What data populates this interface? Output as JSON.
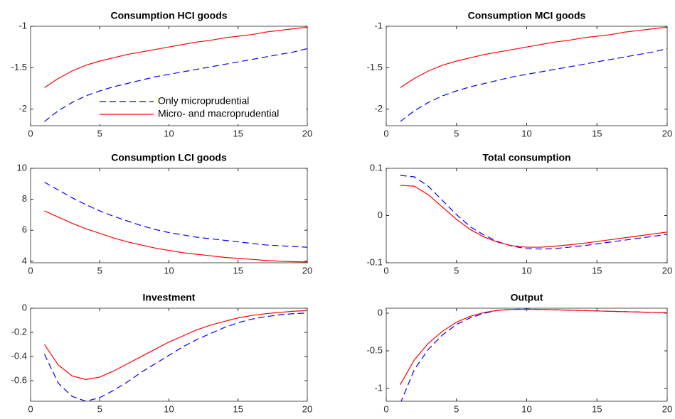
{
  "chart_data": [
    {
      "type": "line",
      "title": "Consumption HCI goods",
      "x": [
        1,
        2,
        3,
        4,
        5,
        6,
        7,
        8,
        9,
        10,
        11,
        12,
        13,
        14,
        15,
        16,
        17,
        18,
        19,
        20
      ],
      "xlim": [
        0,
        20
      ],
      "xticks": [
        0,
        5,
        10,
        15,
        20
      ],
      "ylim": [
        -2.2,
        -1
      ],
      "yticks": [
        -2,
        -1.5,
        -1
      ],
      "legend": "lower right",
      "series": [
        {
          "name": "Only microprudential",
          "color": "#0000ff",
          "line_style": "dashed",
          "values": [
            -2.15,
            -2.02,
            -1.92,
            -1.84,
            -1.78,
            -1.73,
            -1.69,
            -1.65,
            -1.61,
            -1.58,
            -1.55,
            -1.52,
            -1.49,
            -1.46,
            -1.43,
            -1.4,
            -1.37,
            -1.34,
            -1.31,
            -1.27
          ]
        },
        {
          "name": "Micro- and macroprudential",
          "color": "#ff0000",
          "line_style": "solid",
          "values": [
            -1.74,
            -1.63,
            -1.54,
            -1.47,
            -1.42,
            -1.38,
            -1.34,
            -1.31,
            -1.28,
            -1.25,
            -1.22,
            -1.19,
            -1.17,
            -1.14,
            -1.12,
            -1.1,
            -1.07,
            -1.05,
            -1.03,
            -1.01
          ]
        }
      ]
    },
    {
      "type": "line",
      "title": "Consumption MCI goods",
      "x": [
        1,
        2,
        3,
        4,
        5,
        6,
        7,
        8,
        9,
        10,
        11,
        12,
        13,
        14,
        15,
        16,
        17,
        18,
        19,
        20
      ],
      "xlim": [
        0,
        20
      ],
      "xticks": [
        0,
        5,
        10,
        15,
        20
      ],
      "ylim": [
        -2.2,
        -1
      ],
      "yticks": [
        -2,
        -1.5,
        -1
      ],
      "series": [
        {
          "color": "#0000ff",
          "line_style": "dashed",
          "values": [
            -2.15,
            -2.02,
            -1.92,
            -1.84,
            -1.78,
            -1.73,
            -1.69,
            -1.65,
            -1.61,
            -1.58,
            -1.55,
            -1.52,
            -1.49,
            -1.46,
            -1.43,
            -1.4,
            -1.37,
            -1.34,
            -1.31,
            -1.27
          ]
        },
        {
          "color": "#ff0000",
          "line_style": "solid",
          "values": [
            -1.74,
            -1.63,
            -1.54,
            -1.47,
            -1.42,
            -1.38,
            -1.34,
            -1.31,
            -1.28,
            -1.25,
            -1.22,
            -1.19,
            -1.17,
            -1.14,
            -1.12,
            -1.1,
            -1.07,
            -1.05,
            -1.03,
            -1.01
          ]
        }
      ]
    },
    {
      "type": "line",
      "title": "Consumption LCI goods",
      "x": [
        1,
        2,
        3,
        4,
        5,
        6,
        7,
        8,
        9,
        10,
        11,
        12,
        13,
        14,
        15,
        16,
        17,
        18,
        19,
        20
      ],
      "xlim": [
        0,
        20
      ],
      "xticks": [
        0,
        5,
        10,
        15,
        20
      ],
      "ylim": [
        3.9,
        10
      ],
      "yticks": [
        4,
        6,
        8,
        10
      ],
      "series": [
        {
          "color": "#0000ff",
          "line_style": "dashed",
          "values": [
            9.1,
            8.6,
            8.1,
            7.65,
            7.25,
            6.9,
            6.6,
            6.3,
            6.05,
            5.85,
            5.7,
            5.55,
            5.45,
            5.35,
            5.25,
            5.15,
            5.05,
            5,
            4.95,
            4.9
          ]
        },
        {
          "color": "#ff0000",
          "line_style": "solid",
          "values": [
            7.25,
            6.85,
            6.45,
            6.1,
            5.8,
            5.5,
            5.25,
            5.05,
            4.85,
            4.7,
            4.55,
            4.45,
            4.35,
            4.25,
            4.18,
            4.12,
            4.05,
            4,
            3.97,
            3.95
          ]
        }
      ]
    },
    {
      "type": "line",
      "title": "Total consumption",
      "x": [
        1,
        2,
        3,
        4,
        5,
        6,
        7,
        8,
        9,
        10,
        11,
        12,
        13,
        14,
        15,
        16,
        17,
        18,
        19,
        20
      ],
      "xlim": [
        0,
        20
      ],
      "xticks": [
        0,
        5,
        10,
        15,
        20
      ],
      "ylim": [
        -0.1,
        0.1
      ],
      "yticks": [
        -0.1,
        0,
        0.1
      ],
      "series": [
        {
          "color": "#0000ff",
          "line_style": "dashed",
          "values": [
            0.085,
            0.082,
            0.062,
            0.032,
            0.002,
            -0.024,
            -0.042,
            -0.056,
            -0.065,
            -0.07,
            -0.071,
            -0.07,
            -0.067,
            -0.064,
            -0.06,
            -0.056,
            -0.052,
            -0.048,
            -0.044,
            -0.04
          ]
        },
        {
          "color": "#ff0000",
          "line_style": "solid",
          "values": [
            0.064,
            0.062,
            0.044,
            0.018,
            -0.008,
            -0.03,
            -0.046,
            -0.057,
            -0.064,
            -0.067,
            -0.067,
            -0.065,
            -0.062,
            -0.059,
            -0.055,
            -0.051,
            -0.047,
            -0.043,
            -0.039,
            -0.035
          ]
        }
      ]
    },
    {
      "type": "line",
      "title": "Investment",
      "x": [
        1,
        2,
        3,
        4,
        5,
        6,
        7,
        8,
        9,
        10,
        11,
        12,
        13,
        14,
        15,
        16,
        17,
        18,
        19,
        20
      ],
      "xlim": [
        0,
        20
      ],
      "xticks": [
        0,
        5,
        10,
        15,
        20
      ],
      "ylim": [
        -0.77,
        0
      ],
      "yticks": [
        -0.6,
        -0.4,
        -0.2,
        0
      ],
      "series": [
        {
          "color": "#0000ff",
          "line_style": "dashed",
          "values": [
            -0.38,
            -0.62,
            -0.73,
            -0.77,
            -0.74,
            -0.68,
            -0.61,
            -0.53,
            -0.46,
            -0.39,
            -0.32,
            -0.26,
            -0.21,
            -0.16,
            -0.12,
            -0.09,
            -0.07,
            -0.055,
            -0.045,
            -0.04
          ]
        },
        {
          "color": "#ff0000",
          "line_style": "solid",
          "values": [
            -0.3,
            -0.47,
            -0.56,
            -0.59,
            -0.57,
            -0.52,
            -0.46,
            -0.4,
            -0.34,
            -0.28,
            -0.23,
            -0.18,
            -0.14,
            -0.11,
            -0.08,
            -0.06,
            -0.045,
            -0.035,
            -0.025,
            -0.02
          ]
        }
      ]
    },
    {
      "type": "line",
      "title": "Output",
      "x": [
        1,
        2,
        3,
        4,
        5,
        6,
        7,
        8,
        9,
        10,
        11,
        12,
        13,
        14,
        15,
        16,
        17,
        18,
        19,
        20
      ],
      "xlim": [
        0,
        20
      ],
      "xticks": [
        0,
        5,
        10,
        15,
        20
      ],
      "ylim": [
        -1.17,
        0.066
      ],
      "yticks": [
        -1,
        -0.5,
        0
      ],
      "series": [
        {
          "color": "#0000ff",
          "line_style": "dashed",
          "values": [
            -1.2,
            -0.75,
            -0.48,
            -0.29,
            -0.15,
            -0.06,
            0,
            0.04,
            0.05,
            0.055,
            0.05,
            0.045,
            0.04,
            0.035,
            0.03,
            0.025,
            0.02,
            0.015,
            0.01,
            0.005
          ]
        },
        {
          "color": "#ff0000",
          "line_style": "solid",
          "values": [
            -0.95,
            -0.62,
            -0.4,
            -0.24,
            -0.12,
            -0.04,
            0.01,
            0.04,
            0.05,
            0.05,
            0.05,
            0.045,
            0.04,
            0.035,
            0.03,
            0.025,
            0.02,
            0.015,
            0.01,
            0.005
          ]
        }
      ]
    }
  ]
}
